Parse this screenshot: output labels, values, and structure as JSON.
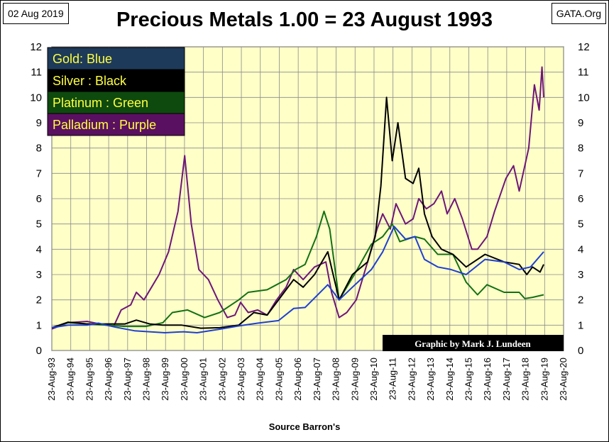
{
  "header": {
    "date": "02 Aug 2019",
    "title": "Precious Metals  1.00 = 23 August 1993",
    "source": "GATA.Org"
  },
  "chart_data": {
    "type": "line",
    "title": "Precious Metals  1.00 = 23 August 1993",
    "xlabel": "Source Barron's",
    "ylabel": "",
    "ylim": [
      0,
      12
    ],
    "xlim": [
      1993.64,
      2020.64
    ],
    "yticks": [
      "0",
      "1",
      "2",
      "3",
      "4",
      "5",
      "6",
      "7",
      "8",
      "9",
      "10",
      "11",
      "12"
    ],
    "xticks": [
      "23-Aug-93",
      "23-Aug-94",
      "23-Aug-95",
      "23-Aug-96",
      "23-Aug-97",
      "23-Aug-98",
      "23-Aug-99",
      "23-Aug-00",
      "23-Aug-01",
      "23-Aug-02",
      "23-Aug-03",
      "23-Aug-04",
      "23-Aug-05",
      "23-Aug-06",
      "23-Aug-07",
      "23-Aug-08",
      "23-Aug-09",
      "23-Aug-10",
      "23-Aug-11",
      "23-Aug-12",
      "23-Aug-13",
      "23-Aug-14",
      "23-Aug-15",
      "23-Aug-16",
      "23-Aug-17",
      "23-Aug-18",
      "23-Aug-19",
      "23-Aug-20"
    ],
    "grid": true,
    "legend_position": "top-left",
    "annotation": "Graphic by Mark J. Lundeen",
    "series": [
      {
        "name": "Gold: Blue",
        "color": "#1f3fd0",
        "points": [
          [
            1993.64,
            0.9
          ],
          [
            1994.5,
            1.0
          ],
          [
            1995.5,
            1.0
          ],
          [
            1996.1,
            1.08
          ],
          [
            1997.0,
            0.92
          ],
          [
            1998.0,
            0.78
          ],
          [
            1999.6,
            0.7
          ],
          [
            2000.6,
            0.74
          ],
          [
            2001.3,
            0.7
          ],
          [
            2002.5,
            0.84
          ],
          [
            2003.5,
            0.97
          ],
          [
            2004.5,
            1.08
          ],
          [
            2005.6,
            1.18
          ],
          [
            2006.4,
            1.66
          ],
          [
            2007.0,
            1.7
          ],
          [
            2008.2,
            2.6
          ],
          [
            2008.8,
            2.0
          ],
          [
            2009.5,
            2.5
          ],
          [
            2010.5,
            3.2
          ],
          [
            2011.1,
            3.9
          ],
          [
            2011.7,
            4.9
          ],
          [
            2012.3,
            4.4
          ],
          [
            2012.8,
            4.5
          ],
          [
            2013.3,
            3.6
          ],
          [
            2014.0,
            3.3
          ],
          [
            2014.7,
            3.2
          ],
          [
            2015.5,
            3.0
          ],
          [
            2016.5,
            3.6
          ],
          [
            2017.5,
            3.5
          ],
          [
            2018.3,
            3.2
          ],
          [
            2018.9,
            3.3
          ],
          [
            2019.59,
            3.9
          ]
        ]
      },
      {
        "name": "Silver : Black",
        "color": "#000000",
        "points": [
          [
            1993.64,
            0.9
          ],
          [
            1994.5,
            1.12
          ],
          [
            1995.5,
            1.05
          ],
          [
            1996.5,
            1.05
          ],
          [
            1997.5,
            1.05
          ],
          [
            1998.1,
            1.2
          ],
          [
            1998.8,
            1.05
          ],
          [
            1999.5,
            1.0
          ],
          [
            2000.5,
            1.0
          ],
          [
            2001.5,
            0.88
          ],
          [
            2002.5,
            0.9
          ],
          [
            2003.5,
            1.0
          ],
          [
            2004.3,
            1.5
          ],
          [
            2005.0,
            1.4
          ],
          [
            2006.4,
            2.8
          ],
          [
            2006.9,
            2.5
          ],
          [
            2007.5,
            3.0
          ],
          [
            2008.2,
            3.9
          ],
          [
            2008.8,
            2.0
          ],
          [
            2009.5,
            3.0
          ],
          [
            2010.3,
            3.5
          ],
          [
            2010.7,
            4.5
          ],
          [
            2011.0,
            6.5
          ],
          [
            2011.3,
            10.0
          ],
          [
            2011.6,
            7.5
          ],
          [
            2011.9,
            9.0
          ],
          [
            2012.3,
            6.8
          ],
          [
            2012.7,
            6.6
          ],
          [
            2013.0,
            7.2
          ],
          [
            2013.3,
            5.4
          ],
          [
            2013.7,
            4.5
          ],
          [
            2014.2,
            4.0
          ],
          [
            2014.8,
            3.8
          ],
          [
            2015.5,
            3.3
          ],
          [
            2016.5,
            3.8
          ],
          [
            2017.5,
            3.5
          ],
          [
            2018.3,
            3.4
          ],
          [
            2018.7,
            3.0
          ],
          [
            2019.0,
            3.3
          ],
          [
            2019.4,
            3.1
          ],
          [
            2019.59,
            3.4
          ]
        ]
      },
      {
        "name": "Platinum : Green",
        "color": "#147014",
        "points": [
          [
            1993.64,
            0.9
          ],
          [
            1994.5,
            1.1
          ],
          [
            1995.5,
            1.05
          ],
          [
            1996.5,
            1.0
          ],
          [
            1997.5,
            0.95
          ],
          [
            1998.6,
            0.95
          ],
          [
            1999.5,
            1.1
          ],
          [
            2000.0,
            1.5
          ],
          [
            2000.8,
            1.6
          ],
          [
            2001.7,
            1.3
          ],
          [
            2002.5,
            1.5
          ],
          [
            2003.5,
            2.0
          ],
          [
            2004.0,
            2.3
          ],
          [
            2005.0,
            2.4
          ],
          [
            2006.0,
            2.8
          ],
          [
            2006.5,
            3.2
          ],
          [
            2007.0,
            3.4
          ],
          [
            2007.6,
            4.5
          ],
          [
            2008.0,
            5.5
          ],
          [
            2008.3,
            4.8
          ],
          [
            2008.8,
            2.0
          ],
          [
            2009.6,
            3.0
          ],
          [
            2010.5,
            4.2
          ],
          [
            2011.1,
            4.5
          ],
          [
            2011.6,
            5.0
          ],
          [
            2012.0,
            4.3
          ],
          [
            2012.8,
            4.5
          ],
          [
            2013.3,
            4.4
          ],
          [
            2014.0,
            3.8
          ],
          [
            2014.8,
            3.8
          ],
          [
            2015.5,
            2.7
          ],
          [
            2016.1,
            2.2
          ],
          [
            2016.6,
            2.6
          ],
          [
            2017.5,
            2.3
          ],
          [
            2018.3,
            2.3
          ],
          [
            2018.6,
            2.05
          ],
          [
            2019.0,
            2.1
          ],
          [
            2019.59,
            2.2
          ]
        ]
      },
      {
        "name": "Palladium : Purple",
        "color": "#6e1678",
        "points": [
          [
            1993.64,
            0.85
          ],
          [
            1994.5,
            1.1
          ],
          [
            1995.5,
            1.15
          ],
          [
            1996.5,
            1.0
          ],
          [
            1996.9,
            0.95
          ],
          [
            1997.3,
            1.6
          ],
          [
            1997.8,
            1.8
          ],
          [
            1998.1,
            2.3
          ],
          [
            1998.5,
            2.0
          ],
          [
            1998.9,
            2.5
          ],
          [
            1999.3,
            3.0
          ],
          [
            1999.8,
            3.9
          ],
          [
            2000.3,
            5.5
          ],
          [
            2000.65,
            7.7
          ],
          [
            2001.0,
            5.0
          ],
          [
            2001.4,
            3.2
          ],
          [
            2001.9,
            2.8
          ],
          [
            2002.4,
            2.0
          ],
          [
            2002.9,
            1.3
          ],
          [
            2003.3,
            1.4
          ],
          [
            2003.6,
            1.9
          ],
          [
            2004.0,
            1.5
          ],
          [
            2004.5,
            1.6
          ],
          [
            2005.0,
            1.4
          ],
          [
            2005.5,
            2.0
          ],
          [
            2006.0,
            2.5
          ],
          [
            2006.4,
            3.2
          ],
          [
            2006.9,
            2.8
          ],
          [
            2007.5,
            3.3
          ],
          [
            2008.1,
            3.5
          ],
          [
            2008.4,
            2.3
          ],
          [
            2008.8,
            1.3
          ],
          [
            2009.2,
            1.5
          ],
          [
            2009.7,
            2.0
          ],
          [
            2010.3,
            3.5
          ],
          [
            2010.8,
            4.8
          ],
          [
            2011.1,
            5.4
          ],
          [
            2011.5,
            4.8
          ],
          [
            2011.8,
            5.8
          ],
          [
            2012.3,
            5.0
          ],
          [
            2012.7,
            5.2
          ],
          [
            2013.0,
            6.0
          ],
          [
            2013.4,
            5.6
          ],
          [
            2013.8,
            5.8
          ],
          [
            2014.2,
            6.3
          ],
          [
            2014.5,
            5.4
          ],
          [
            2014.9,
            6.0
          ],
          [
            2015.3,
            5.2
          ],
          [
            2015.8,
            4.0
          ],
          [
            2016.1,
            4.0
          ],
          [
            2016.6,
            4.5
          ],
          [
            2017.0,
            5.5
          ],
          [
            2017.6,
            6.8
          ],
          [
            2018.0,
            7.3
          ],
          [
            2018.3,
            6.3
          ],
          [
            2018.8,
            8.0
          ],
          [
            2019.1,
            10.5
          ],
          [
            2019.35,
            9.5
          ],
          [
            2019.5,
            11.2
          ],
          [
            2019.59,
            10.0
          ]
        ]
      }
    ]
  }
}
